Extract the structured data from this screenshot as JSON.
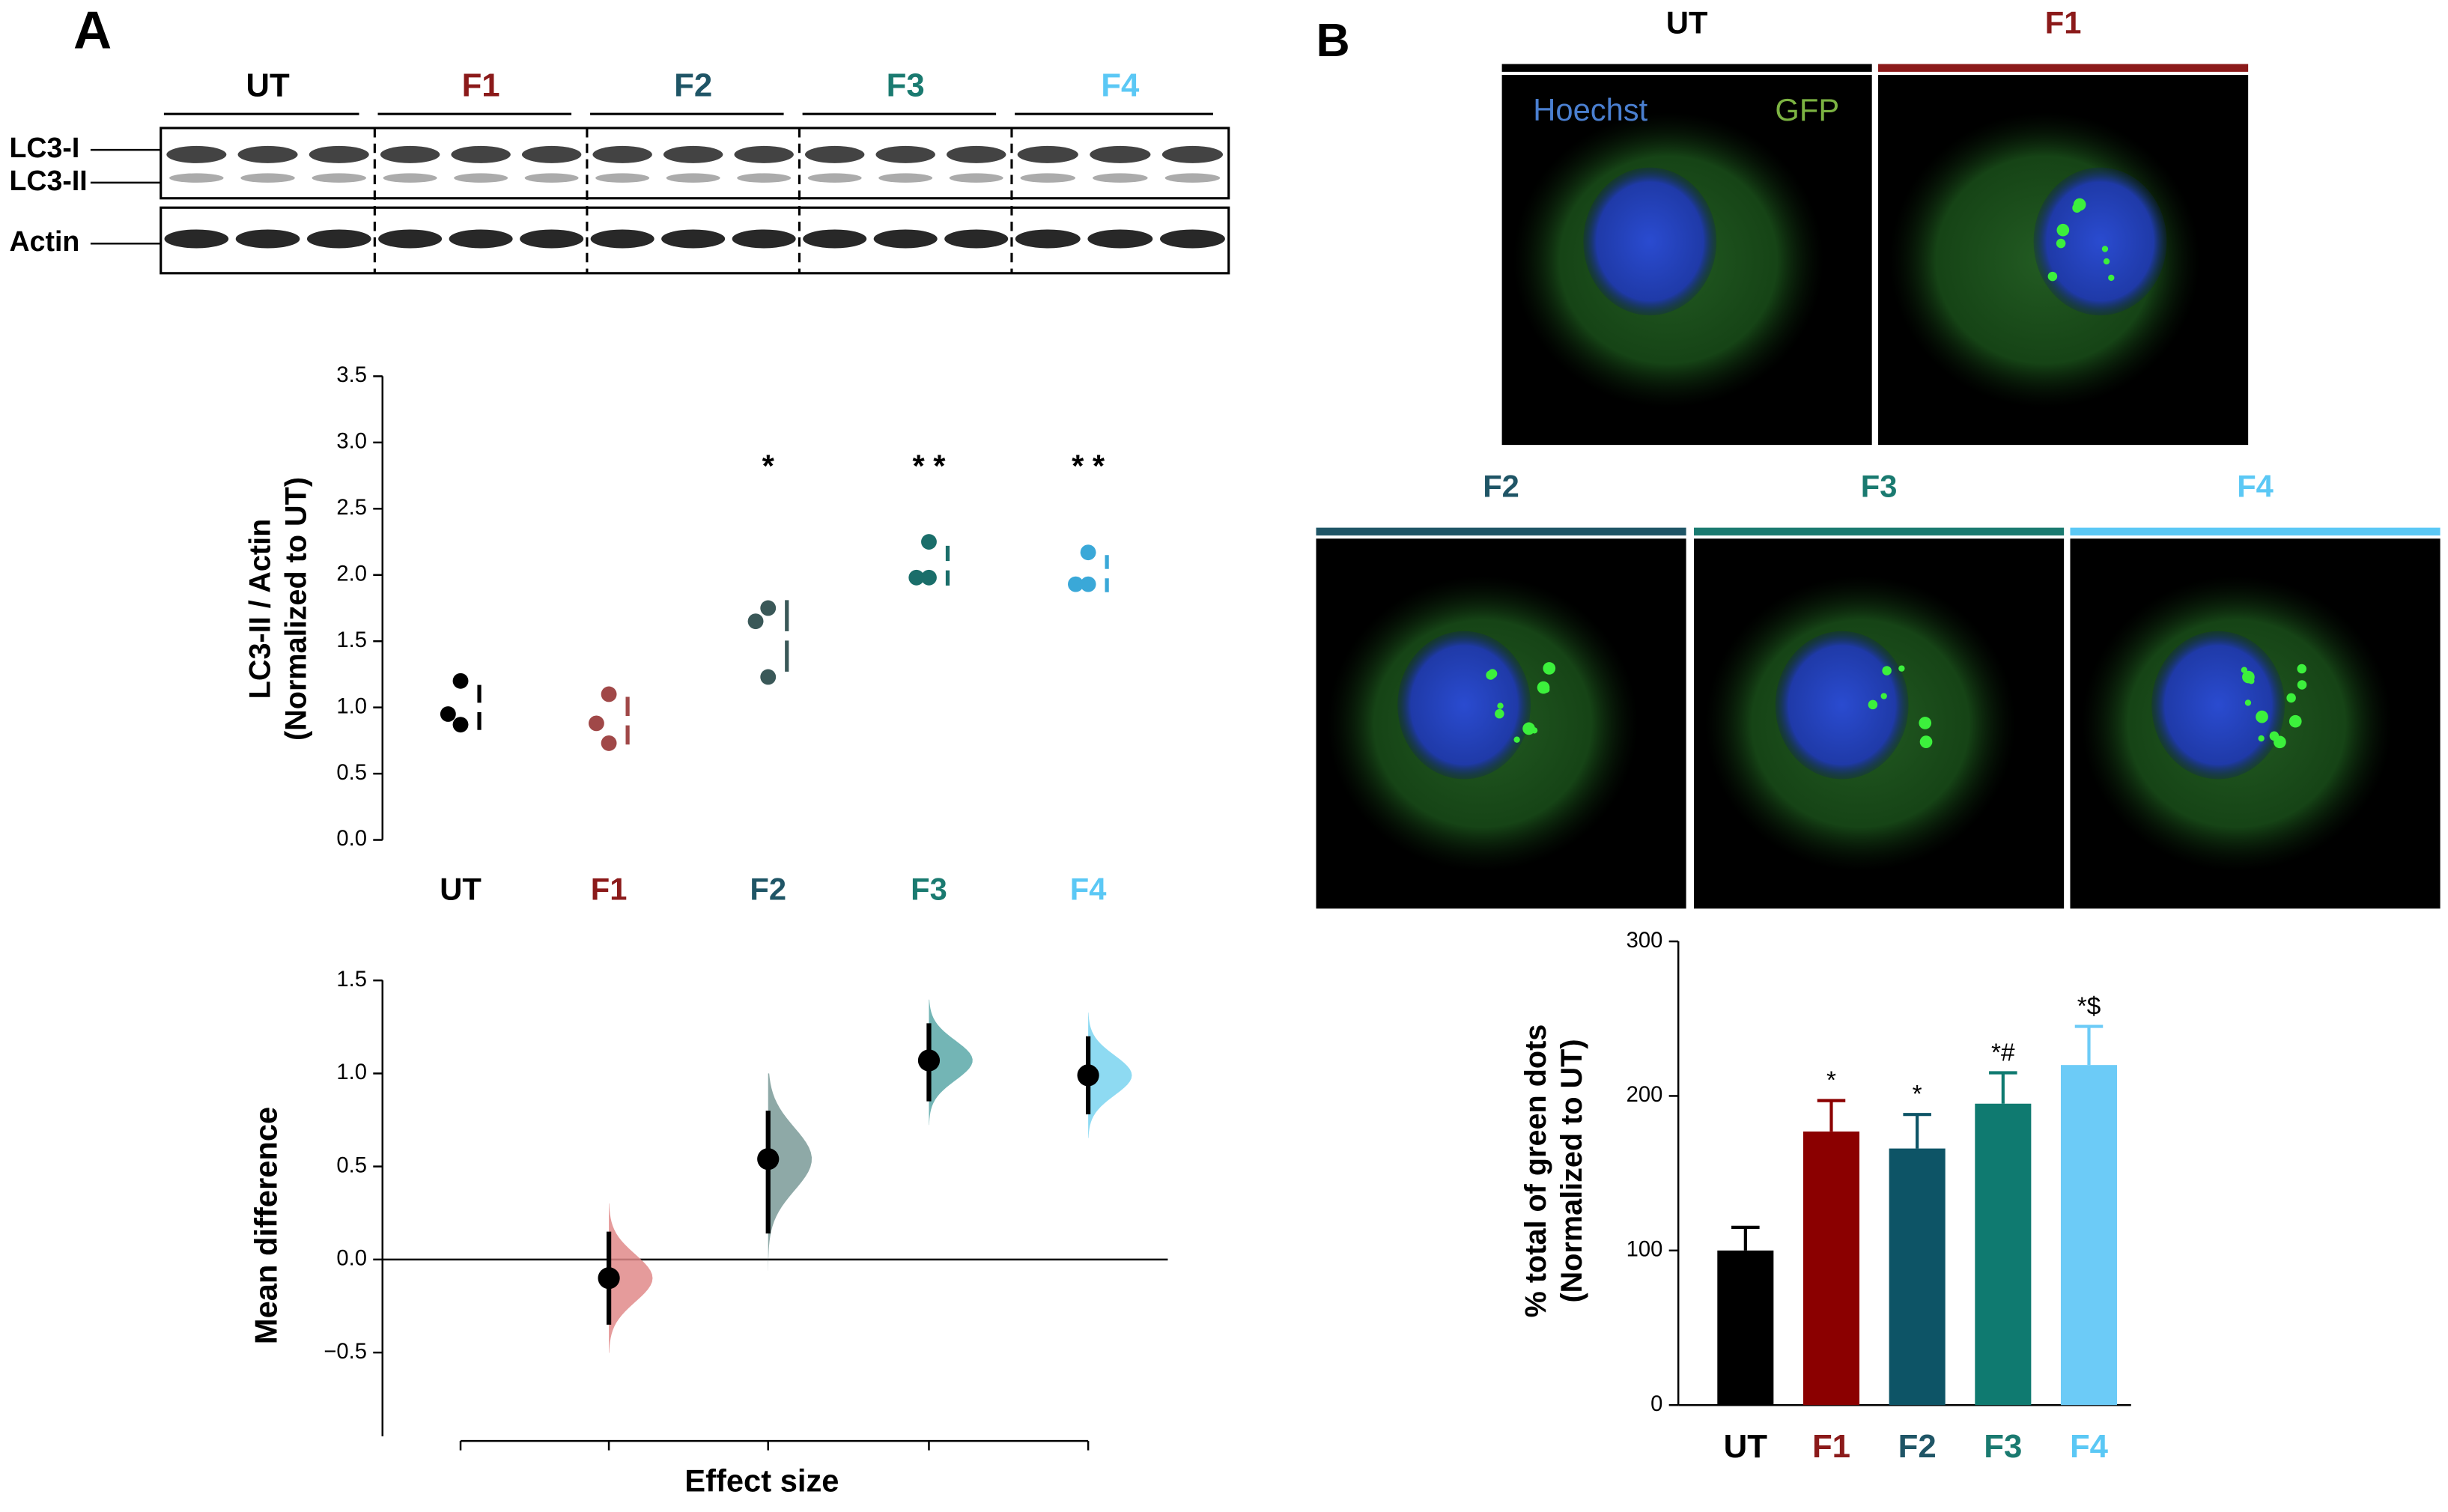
{
  "panels": {
    "a": "A",
    "b": "B"
  },
  "blot": {
    "groups": [
      "UT",
      "F1",
      "F2",
      "F3",
      "F4"
    ],
    "colors": [
      "#000000",
      "#8b1a1a",
      "#1f5566",
      "#1a7a70",
      "#5bc8f5"
    ],
    "bands": [
      "LC3-I",
      "LC3-II",
      "Actin"
    ]
  },
  "microscopy": {
    "labels": [
      "UT",
      "F1",
      "F2",
      "F3",
      "F4"
    ],
    "colors": [
      "#000000",
      "#8b1a1a",
      "#1f5566",
      "#1a7a70",
      "#5bc8f5"
    ],
    "channels": [
      "Hoechst",
      "GFP"
    ],
    "channel_colors": [
      "#4a7fd0",
      "#7cb342"
    ]
  },
  "chart_data": [
    {
      "type": "strip",
      "y_label": [
        "LC3-II / Actin",
        "(Normalized to UT)"
      ],
      "categories": [
        "UT",
        "F1",
        "F2",
        "F3",
        "F4"
      ],
      "label_colors": [
        "#000000",
        "#8b1a1a",
        "#1f5566",
        "#1a7a70",
        "#5bc8f5"
      ],
      "colors": [
        "#000000",
        "#a04848",
        "#3a5858",
        "#1a6e6a",
        "#3aa8d8"
      ],
      "points": [
        [
          1.2,
          0.95,
          0.87
        ],
        [
          1.1,
          0.88,
          0.73
        ],
        [
          1.75,
          1.65,
          1.23
        ],
        [
          2.25,
          1.98,
          1.98
        ],
        [
          2.17,
          1.93,
          1.93
        ]
      ],
      "mean": [
        1.0,
        0.9,
        1.54,
        2.07,
        2.01
      ],
      "sd": [
        0.17,
        0.18,
        0.27,
        0.15,
        0.14
      ],
      "annotations": [
        null,
        null,
        "*",
        "* *",
        "* *"
      ],
      "ylim": [
        0,
        3.5
      ],
      "yticks": [
        {
          "value": 0,
          "label": "0.0"
        },
        0.5,
        {
          "value": 1,
          "label": "1.0"
        },
        1.5,
        {
          "value": 2,
          "label": "2.0"
        },
        2.5,
        {
          "value": 3,
          "label": "3.0"
        },
        3.5
      ]
    },
    {
      "type": "estimation",
      "y_label": "Mean difference",
      "x_label": "Effect size",
      "categories": [
        null,
        null,
        null,
        null,
        null
      ],
      "values": [
        null,
        -0.1,
        0.54,
        1.07,
        0.99
      ],
      "ci_low": [
        null,
        -0.35,
        0.14,
        0.85,
        0.78
      ],
      "ci_high": [
        null,
        0.15,
        0.8,
        1.27,
        1.2
      ],
      "colors": [
        null,
        "#e08a8a",
        "#7a9a98",
        "#5aa8a8",
        "#7ad4f0"
      ],
      "ylim": [
        -0.95,
        1.5
      ],
      "yticks": [
        {
          "value": -0.5,
          "label": "−0.5"
        },
        {
          "value": 0,
          "label": "0.0"
        },
        0.5,
        {
          "value": 1,
          "label": "1.0"
        },
        1.5
      ]
    },
    {
      "type": "bar",
      "y_label": [
        "% total of green dots",
        "(Normalized to UT)"
      ],
      "categories": [
        "UT",
        "F1",
        "F2",
        "F3",
        "F4"
      ],
      "values": [
        100,
        177,
        166,
        195,
        220
      ],
      "errors": [
        15,
        20,
        22,
        20,
        25
      ],
      "colors": [
        "#000000",
        "#8b0000",
        "#0d5466",
        "#0f7a70",
        "#6ccbf7"
      ],
      "label_colors": [
        "#000000",
        "#8b1a1a",
        "#1f5566",
        "#1a7a70",
        "#5bc8f5"
      ],
      "annotations": [
        null,
        "*",
        "*",
        "*#",
        "*$"
      ],
      "ylim": [
        0,
        300
      ],
      "yticks": [
        0,
        100,
        200,
        300
      ]
    }
  ]
}
